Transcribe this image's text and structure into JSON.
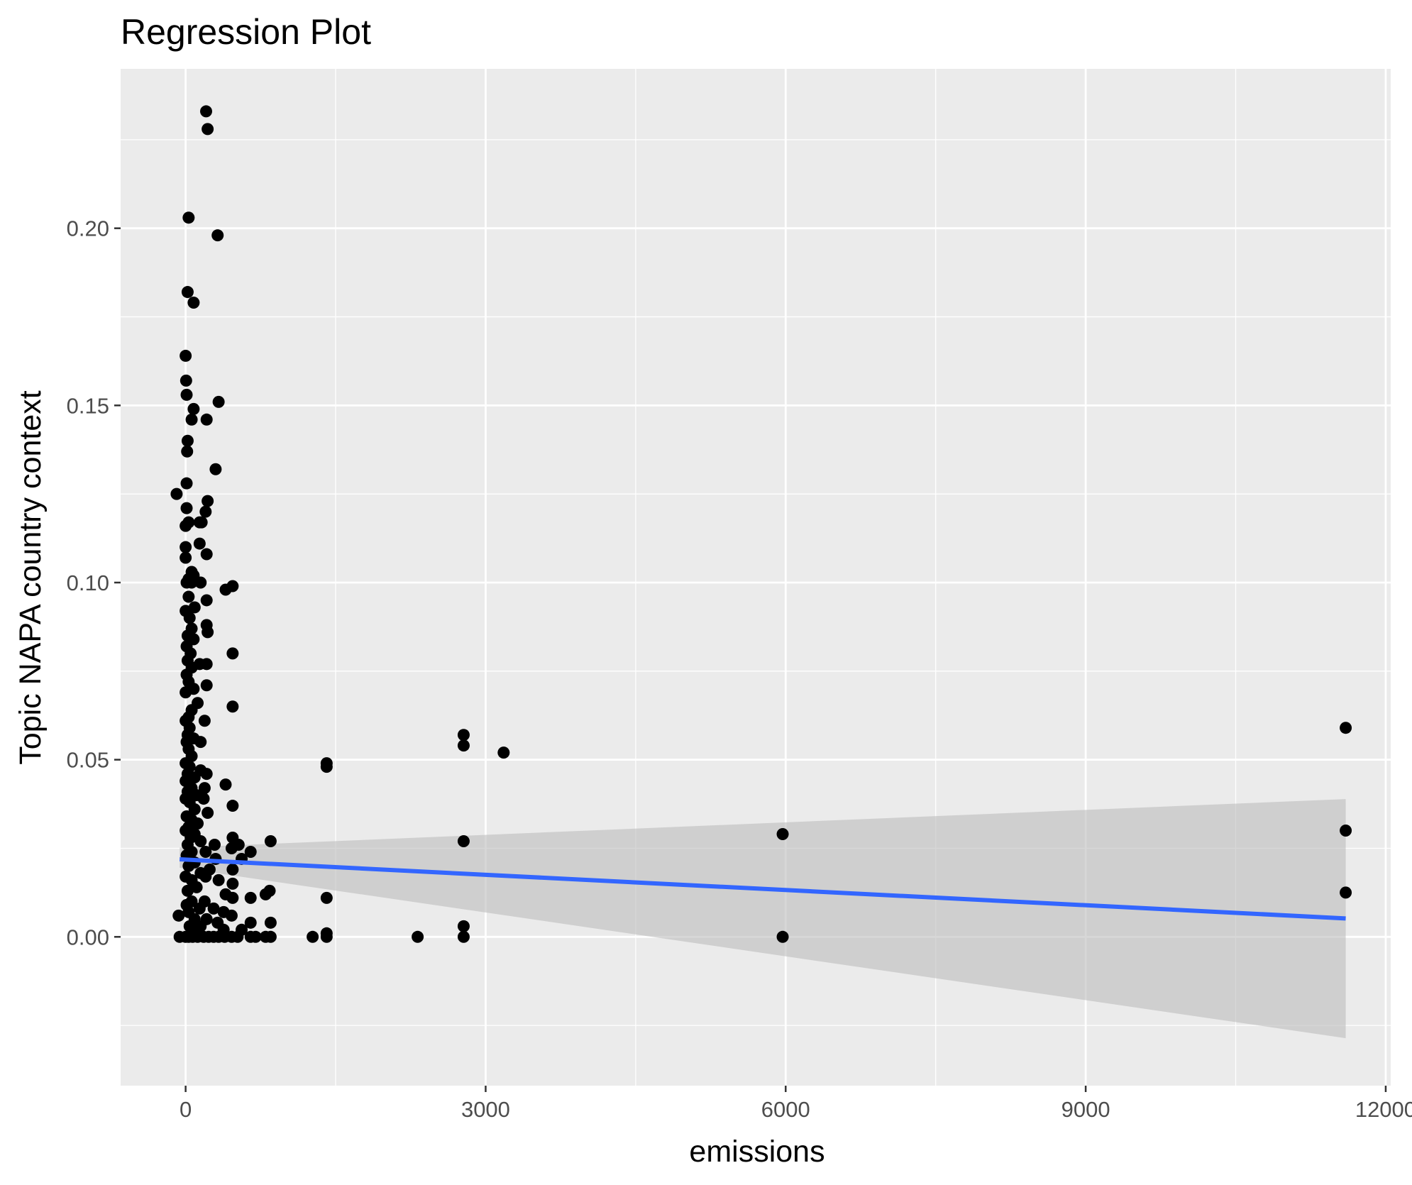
{
  "chart_data": {
    "type": "scatter",
    "title": "Regression Plot",
    "xlabel": "emissions",
    "ylabel": "Topic NAPA country context",
    "xlim": [
      -650,
      12050
    ],
    "ylim": [
      -0.042,
      0.245
    ],
    "x_ticks": [
      0,
      3000,
      6000,
      9000,
      12000
    ],
    "x_tick_labels": [
      "0",
      "3000",
      "6000",
      "9000",
      "12000"
    ],
    "y_ticks": [
      0.0,
      0.05,
      0.1,
      0.15,
      0.2
    ],
    "y_tick_labels": [
      "0.00",
      "0.05",
      "0.10",
      "0.15",
      "0.20"
    ],
    "grid": true,
    "legend": "none",
    "colors": {
      "panel": "#ebebeb",
      "grid_major": "#ffffff",
      "points": "#000000",
      "fit_line": "#3366ff",
      "ribbon": "#bdbdbd"
    },
    "regression": {
      "x": [
        -60,
        11600
      ],
      "y": [
        0.0219,
        0.0052
      ],
      "ci_lower": [
        0.0195,
        -0.0286
      ],
      "ci_upper": [
        0.0252,
        0.0389
      ]
    },
    "series": [
      {
        "points": [
          [
            205,
            0.233
          ],
          [
            220,
            0.228
          ],
          [
            30,
            0.203
          ],
          [
            320,
            0.198
          ],
          [
            20,
            0.182
          ],
          [
            80,
            0.179
          ],
          [
            0,
            0.164
          ],
          [
            5,
            0.157
          ],
          [
            10,
            0.153
          ],
          [
            330,
            0.151
          ],
          [
            80,
            0.149
          ],
          [
            210,
            0.146
          ],
          [
            60,
            0.146
          ],
          [
            20,
            0.14
          ],
          [
            15,
            0.137
          ],
          [
            300,
            0.132
          ],
          [
            10,
            0.128
          ],
          [
            -90,
            0.125
          ],
          [
            220,
            0.123
          ],
          [
            200,
            0.12
          ],
          [
            10,
            0.121
          ],
          [
            30,
            0.117
          ],
          [
            140,
            0.117
          ],
          [
            160,
            0.117
          ],
          [
            0,
            0.116
          ],
          [
            140,
            0.111
          ],
          [
            0,
            0.11
          ],
          [
            210,
            0.108
          ],
          [
            0,
            0.107
          ],
          [
            60,
            0.103
          ],
          [
            80,
            0.102
          ],
          [
            30,
            0.101
          ],
          [
            60,
            0.1
          ],
          [
            10,
            0.1
          ],
          [
            150,
            0.1
          ],
          [
            470,
            0.099
          ],
          [
            400,
            0.098
          ],
          [
            30,
            0.096
          ],
          [
            210,
            0.095
          ],
          [
            90,
            0.093
          ],
          [
            0,
            0.092
          ],
          [
            40,
            0.09
          ],
          [
            210,
            0.088
          ],
          [
            60,
            0.087
          ],
          [
            220,
            0.086
          ],
          [
            20,
            0.085
          ],
          [
            80,
            0.084
          ],
          [
            10,
            0.082
          ],
          [
            470,
            0.08
          ],
          [
            50,
            0.08
          ],
          [
            20,
            0.078
          ],
          [
            210,
            0.077
          ],
          [
            140,
            0.077
          ],
          [
            60,
            0.076
          ],
          [
            10,
            0.074
          ],
          [
            30,
            0.072
          ],
          [
            210,
            0.071
          ],
          [
            80,
            0.07
          ],
          [
            0,
            0.069
          ],
          [
            120,
            0.066
          ],
          [
            470,
            0.065
          ],
          [
            60,
            0.064
          ],
          [
            30,
            0.062
          ],
          [
            190,
            0.061
          ],
          [
            0,
            0.061
          ],
          [
            40,
            0.059
          ],
          [
            20,
            0.057
          ],
          [
            80,
            0.056
          ],
          [
            10,
            0.055
          ],
          [
            150,
            0.055
          ],
          [
            30,
            0.053
          ],
          [
            60,
            0.051
          ],
          [
            0,
            0.049
          ],
          [
            40,
            0.048
          ],
          [
            150,
            0.047
          ],
          [
            210,
            0.046
          ],
          [
            20,
            0.046
          ],
          [
            90,
            0.045
          ],
          [
            0,
            0.044
          ],
          [
            400,
            0.043
          ],
          [
            60,
            0.042
          ],
          [
            190,
            0.042
          ],
          [
            20,
            0.041
          ],
          [
            110,
            0.04
          ],
          [
            0,
            0.039
          ],
          [
            180,
            0.039
          ],
          [
            40,
            0.038
          ],
          [
            470,
            0.037
          ],
          [
            90,
            0.036
          ],
          [
            220,
            0.035
          ],
          [
            10,
            0.034
          ],
          [
            60,
            0.033
          ],
          [
            120,
            0.032
          ],
          [
            30,
            0.031
          ],
          [
            0,
            0.03
          ],
          [
            90,
            0.029
          ],
          [
            470,
            0.028
          ],
          [
            50,
            0.028
          ],
          [
            150,
            0.027
          ],
          [
            850,
            0.027
          ],
          [
            20,
            0.026
          ],
          [
            290,
            0.026
          ],
          [
            530,
            0.026
          ],
          [
            460,
            0.025
          ],
          [
            200,
            0.024
          ],
          [
            650,
            0.024
          ],
          [
            60,
            0.024
          ],
          [
            10,
            0.023
          ],
          [
            560,
            0.022
          ],
          [
            300,
            0.022
          ],
          [
            90,
            0.021
          ],
          [
            30,
            0.02
          ],
          [
            240,
            0.019
          ],
          [
            470,
            0.019
          ],
          [
            150,
            0.018
          ],
          [
            0,
            0.017
          ],
          [
            200,
            0.017
          ],
          [
            330,
            0.016
          ],
          [
            60,
            0.016
          ],
          [
            470,
            0.015
          ],
          [
            110,
            0.014
          ],
          [
            20,
            0.013
          ],
          [
            400,
            0.012
          ],
          [
            800,
            0.012
          ],
          [
            840,
            0.013
          ],
          [
            650,
            0.011
          ],
          [
            1410,
            0.011
          ],
          [
            470,
            0.011
          ],
          [
            190,
            0.01
          ],
          [
            60,
            0.01
          ],
          [
            10,
            0.009
          ],
          [
            280,
            0.008
          ],
          [
            140,
            0.008
          ],
          [
            380,
            0.007
          ],
          [
            30,
            0.007
          ],
          [
            -70,
            0.006
          ],
          [
            460,
            0.006
          ],
          [
            210,
            0.005
          ],
          [
            90,
            0.005
          ],
          [
            320,
            0.004
          ],
          [
            650,
            0.004
          ],
          [
            850,
            0.004
          ],
          [
            40,
            0.003
          ],
          [
            150,
            0.003
          ],
          [
            380,
            0.002
          ],
          [
            560,
            0.002
          ],
          [
            1410,
            0.001
          ],
          [
            110,
            0.001
          ],
          [
            -60,
            0.0
          ],
          [
            0,
            0.0
          ],
          [
            30,
            0.0
          ],
          [
            70,
            0.0
          ],
          [
            120,
            0.0
          ],
          [
            180,
            0.0
          ],
          [
            230,
            0.0
          ],
          [
            280,
            0.0
          ],
          [
            330,
            0.0
          ],
          [
            390,
            0.0
          ],
          [
            460,
            0.0
          ],
          [
            520,
            0.0
          ],
          [
            650,
            0.0
          ],
          [
            700,
            0.0
          ],
          [
            800,
            0.0
          ],
          [
            850,
            0.0
          ],
          [
            1270,
            0.0
          ],
          [
            1410,
            0.0
          ],
          [
            2320,
            0.0
          ],
          [
            1410,
            0.049
          ],
          [
            1410,
            0.048
          ],
          [
            2780,
            0.057
          ],
          [
            2780,
            0.054
          ],
          [
            3180,
            0.052
          ],
          [
            2780,
            0.027
          ],
          [
            2780,
            0.003
          ],
          [
            2780,
            0.0
          ],
          [
            5970,
            0.029
          ],
          [
            5970,
            0.0
          ],
          [
            11600,
            0.059
          ],
          [
            11600,
            0.03
          ],
          [
            11600,
            0.0125
          ]
        ]
      }
    ]
  }
}
